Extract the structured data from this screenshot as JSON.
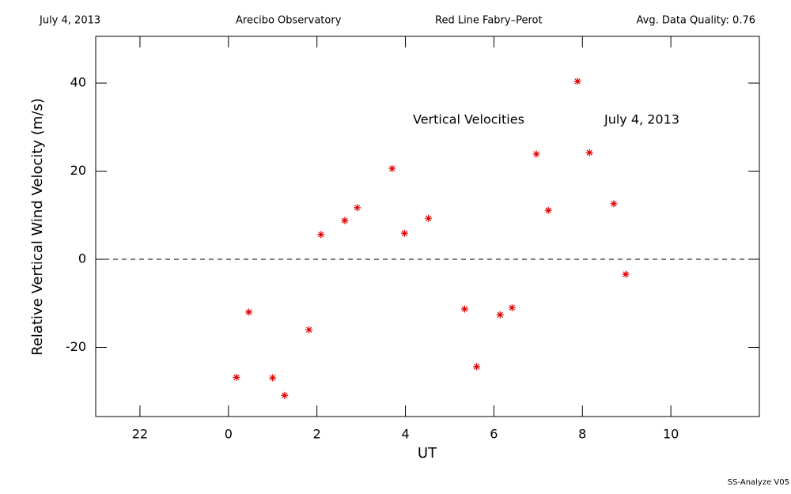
{
  "chart_data": {
    "type": "scatter",
    "header": [
      "July 4, 2013",
      "Arecibo Observatory",
      "Red Line Fabry–Perot",
      "Avg. Data Quality: 0.76"
    ],
    "annotations": [
      "Vertical Velocities",
      "July 4, 2013"
    ],
    "footer": "SS-Analyze V05",
    "xlabel": "UT",
    "ylabel": "Relative Vertical Wind Velocity (m/s)",
    "x": [
      0.18,
      0.46,
      1.0,
      1.27,
      1.82,
      2.09,
      2.63,
      2.91,
      3.7,
      3.98,
      4.52,
      5.34,
      5.61,
      6.14,
      6.41,
      6.96,
      7.23,
      7.89,
      8.16,
      8.71,
      8.98
    ],
    "values": [
      -26.8,
      -12.0,
      -26.9,
      -30.9,
      -16.0,
      5.6,
      8.8,
      11.7,
      20.6,
      5.9,
      9.3,
      -11.3,
      -24.4,
      -12.6,
      -11.0,
      23.9,
      11.1,
      40.4,
      24.2,
      12.6,
      -3.4
    ],
    "color": "#e00000",
    "xlim": [
      -3,
      12
    ],
    "xticks": [
      {
        "value": -2,
        "label": "22"
      },
      0,
      2,
      4,
      6,
      8,
      10
    ],
    "ylim": [
      -35.7,
      50.6
    ],
    "yticks": [
      -20,
      0,
      20,
      40
    ],
    "hline": 0
  }
}
